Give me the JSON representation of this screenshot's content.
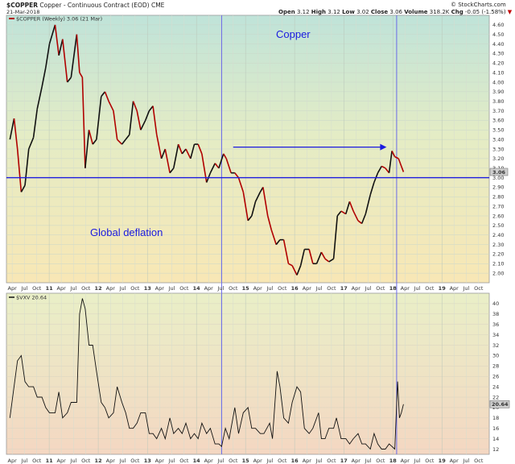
{
  "header": {
    "symbol": "$COPPER",
    "description": "Copper - Continuous Contract (EOD)",
    "exchange": "CME",
    "date": "21-Mar-2018",
    "open_label": "Open",
    "open": "3.12",
    "high_label": "High",
    "high": "3.12",
    "low_label": "Low",
    "low": "3.02",
    "close_label": "Close",
    "close": "3.06",
    "volume_label": "Volume",
    "volume": "318.2K",
    "chg_label": "Chg",
    "chg": "-0.05 (-1.58%)",
    "chg_arrow": "▼",
    "brand": "© StockCharts.com"
  },
  "colors": {
    "price_line": "#b00000",
    "price_up": "#111111",
    "vix_line": "#111111",
    "horizontal_line": "#1a1adf",
    "vertical_lines": "#6a6ae8",
    "arrow": "#1a1adf",
    "annotation_text": "#1a1adf",
    "current_value_box": "#cccccc"
  },
  "chart_data": [
    {
      "type": "line",
      "panel": "price",
      "legend": "$COPPER (Weekly) 3.06 (21 Mar)",
      "current_value_label": "3.06",
      "annotations": [
        "Copper",
        "Global deflation"
      ],
      "ylim": [
        1.9,
        4.7
      ],
      "y_ticks": [
        "2.00",
        "2.10",
        "2.20",
        "2.30",
        "2.40",
        "2.50",
        "2.60",
        "2.70",
        "2.80",
        "2.90",
        "3.00",
        "3.10",
        "3.20",
        "3.30",
        "3.40",
        "3.50",
        "3.60",
        "3.70",
        "3.80",
        "3.90",
        "4.00",
        "4.10",
        "4.20",
        "4.30",
        "4.40",
        "4.50",
        "4.60"
      ],
      "horizontal_line_value": 3.0,
      "arrow_y_value": 3.32,
      "series": [
        {
          "values": [
            [
              "2010-03-15",
              3.4
            ],
            [
              "2010-04-15",
              3.62
            ],
            [
              "2010-05-10",
              3.3
            ],
            [
              "2010-06-07",
              2.85
            ],
            [
              "2010-07-05",
              2.92
            ],
            [
              "2010-08-02",
              3.3
            ],
            [
              "2010-09-06",
              3.42
            ],
            [
              "2010-10-04",
              3.72
            ],
            [
              "2010-11-08",
              3.95
            ],
            [
              "2010-12-06",
              4.15
            ],
            [
              "2011-01-03",
              4.4
            ],
            [
              "2011-02-14",
              4.6
            ],
            [
              "2011-03-14",
              4.28
            ],
            [
              "2011-04-11",
              4.45
            ],
            [
              "2011-05-16",
              4.0
            ],
            [
              "2011-06-13",
              4.05
            ],
            [
              "2011-07-25",
              4.5
            ],
            [
              "2011-08-15",
              4.1
            ],
            [
              "2011-09-05",
              4.05
            ],
            [
              "2011-09-26",
              3.1
            ],
            [
              "2011-10-24",
              3.5
            ],
            [
              "2011-11-21",
              3.35
            ],
            [
              "2011-12-19",
              3.4
            ],
            [
              "2012-01-23",
              3.85
            ],
            [
              "2012-02-20",
              3.9
            ],
            [
              "2012-03-19",
              3.8
            ],
            [
              "2012-04-23",
              3.7
            ],
            [
              "2012-05-21",
              3.4
            ],
            [
              "2012-06-25",
              3.35
            ],
            [
              "2012-07-23",
              3.4
            ],
            [
              "2012-08-20",
              3.45
            ],
            [
              "2012-09-17",
              3.8
            ],
            [
              "2012-10-15",
              3.7
            ],
            [
              "2012-11-12",
              3.5
            ],
            [
              "2012-12-17",
              3.6
            ],
            [
              "2013-01-14",
              3.7
            ],
            [
              "2013-02-11",
              3.75
            ],
            [
              "2013-03-11",
              3.45
            ],
            [
              "2013-04-15",
              3.2
            ],
            [
              "2013-05-13",
              3.3
            ],
            [
              "2013-06-17",
              3.05
            ],
            [
              "2013-07-15",
              3.1
            ],
            [
              "2013-08-19",
              3.35
            ],
            [
              "2013-09-16",
              3.25
            ],
            [
              "2013-10-14",
              3.3
            ],
            [
              "2013-11-18",
              3.2
            ],
            [
              "2013-12-16",
              3.35
            ],
            [
              "2014-01-13",
              3.35
            ],
            [
              "2014-02-10",
              3.25
            ],
            [
              "2014-03-17",
              2.95
            ],
            [
              "2014-04-14",
              3.05
            ],
            [
              "2014-05-19",
              3.15
            ],
            [
              "2014-06-16",
              3.1
            ],
            [
              "2014-07-21",
              3.25
            ],
            [
              "2014-08-11",
              3.2
            ],
            [
              "2014-09-15",
              3.05
            ],
            [
              "2014-10-13",
              3.05
            ],
            [
              "2014-11-10",
              3.0
            ],
            [
              "2014-12-15",
              2.85
            ],
            [
              "2015-01-19",
              2.55
            ],
            [
              "2015-02-16",
              2.6
            ],
            [
              "2015-03-16",
              2.75
            ],
            [
              "2015-04-20",
              2.85
            ],
            [
              "2015-05-11",
              2.9
            ],
            [
              "2015-06-15",
              2.6
            ],
            [
              "2015-07-13",
              2.45
            ],
            [
              "2015-08-17",
              2.3
            ],
            [
              "2015-09-14",
              2.35
            ],
            [
              "2015-10-12",
              2.35
            ],
            [
              "2015-11-16",
              2.1
            ],
            [
              "2015-12-14",
              2.08
            ],
            [
              "2016-01-18",
              1.98
            ],
            [
              "2016-02-15",
              2.08
            ],
            [
              "2016-03-14",
              2.25
            ],
            [
              "2016-04-18",
              2.25
            ],
            [
              "2016-05-16",
              2.1
            ],
            [
              "2016-06-13",
              2.1
            ],
            [
              "2016-07-18",
              2.22
            ],
            [
              "2016-08-15",
              2.15
            ],
            [
              "2016-09-12",
              2.12
            ],
            [
              "2016-10-17",
              2.15
            ],
            [
              "2016-11-14",
              2.6
            ],
            [
              "2016-12-12",
              2.65
            ],
            [
              "2017-01-16",
              2.62
            ],
            [
              "2017-02-13",
              2.75
            ],
            [
              "2017-03-13",
              2.65
            ],
            [
              "2017-04-17",
              2.55
            ],
            [
              "2017-05-15",
              2.52
            ],
            [
              "2017-06-12",
              2.62
            ],
            [
              "2017-07-17",
              2.82
            ],
            [
              "2017-08-14",
              2.95
            ],
            [
              "2017-09-11",
              3.05
            ],
            [
              "2017-10-09",
              3.12
            ],
            [
              "2017-11-06",
              3.1
            ],
            [
              "2017-12-04",
              3.05
            ],
            [
              "2017-12-25",
              3.28
            ],
            [
              "2018-01-15",
              3.22
            ],
            [
              "2018-02-12",
              3.2
            ],
            [
              "2018-03-05",
              3.12
            ],
            [
              "2018-03-21",
              3.06
            ]
          ]
        }
      ]
    },
    {
      "type": "line",
      "panel": "vix",
      "legend": "$VXV 20.64",
      "current_value_label": "20.64",
      "ylim": [
        11,
        42
      ],
      "y_ticks": [
        "12",
        "14",
        "16",
        "18",
        "20",
        "22",
        "24",
        "26",
        "28",
        "30",
        "32",
        "34",
        "36",
        "38",
        "40"
      ],
      "series": [
        {
          "values": [
            [
              "2010-03-15",
              18
            ],
            [
              "2010-05-10",
              29
            ],
            [
              "2010-06-07",
              30
            ],
            [
              "2010-07-05",
              25
            ],
            [
              "2010-08-02",
              24
            ],
            [
              "2010-09-06",
              24
            ],
            [
              "2010-10-04",
              22
            ],
            [
              "2010-11-08",
              22
            ],
            [
              "2010-12-06",
              20
            ],
            [
              "2011-01-03",
              19
            ],
            [
              "2011-02-14",
              19
            ],
            [
              "2011-03-14",
              23
            ],
            [
              "2011-04-11",
              18
            ],
            [
              "2011-05-16",
              19
            ],
            [
              "2011-06-13",
              21
            ],
            [
              "2011-07-25",
              21
            ],
            [
              "2011-08-15",
              38
            ],
            [
              "2011-09-05",
              41
            ],
            [
              "2011-09-26",
              39
            ],
            [
              "2011-10-24",
              32
            ],
            [
              "2011-11-21",
              32
            ],
            [
              "2011-12-19",
              27
            ],
            [
              "2012-01-23",
              21
            ],
            [
              "2012-02-20",
              20
            ],
            [
              "2012-03-19",
              18
            ],
            [
              "2012-04-23",
              19
            ],
            [
              "2012-05-21",
              24
            ],
            [
              "2012-06-25",
              21
            ],
            [
              "2012-07-23",
              19
            ],
            [
              "2012-08-20",
              16
            ],
            [
              "2012-09-17",
              16
            ],
            [
              "2012-10-15",
              17
            ],
            [
              "2012-11-12",
              19
            ],
            [
              "2012-12-17",
              19
            ],
            [
              "2013-01-14",
              15
            ],
            [
              "2013-02-11",
              15
            ],
            [
              "2013-03-11",
              14
            ],
            [
              "2013-04-15",
              16
            ],
            [
              "2013-05-13",
              14
            ],
            [
              "2013-06-17",
              18
            ],
            [
              "2013-07-15",
              15
            ],
            [
              "2013-08-19",
              16
            ],
            [
              "2013-09-16",
              15
            ],
            [
              "2013-10-14",
              17
            ],
            [
              "2013-11-18",
              14
            ],
            [
              "2013-12-16",
              15
            ],
            [
              "2014-01-13",
              14
            ],
            [
              "2014-02-10",
              17
            ],
            [
              "2014-03-17",
              15
            ],
            [
              "2014-04-14",
              16
            ],
            [
              "2014-05-19",
              13
            ],
            [
              "2014-06-16",
              13
            ],
            [
              "2014-07-07",
              12.5
            ],
            [
              "2014-08-04",
              16
            ],
            [
              "2014-09-01",
              14
            ],
            [
              "2014-10-13",
              20
            ],
            [
              "2014-11-10",
              15
            ],
            [
              "2014-12-15",
              19
            ],
            [
              "2015-01-19",
              20
            ],
            [
              "2015-02-16",
              16
            ],
            [
              "2015-03-16",
              16
            ],
            [
              "2015-04-20",
              15
            ],
            [
              "2015-05-18",
              15
            ],
            [
              "2015-06-29",
              17
            ],
            [
              "2015-07-20",
              14
            ],
            [
              "2015-08-24",
              27
            ],
            [
              "2015-09-14",
              24
            ],
            [
              "2015-10-12",
              18
            ],
            [
              "2015-11-16",
              17
            ],
            [
              "2015-12-14",
              21
            ],
            [
              "2016-01-18",
              24
            ],
            [
              "2016-02-15",
              23
            ],
            [
              "2016-03-14",
              16
            ],
            [
              "2016-04-18",
              15
            ],
            [
              "2016-05-16",
              16
            ],
            [
              "2016-06-27",
              19
            ],
            [
              "2016-07-18",
              14
            ],
            [
              "2016-08-15",
              14
            ],
            [
              "2016-09-12",
              16
            ],
            [
              "2016-10-17",
              16
            ],
            [
              "2016-11-07",
              18
            ],
            [
              "2016-12-12",
              14
            ],
            [
              "2017-01-16",
              14
            ],
            [
              "2017-02-13",
              13
            ],
            [
              "2017-03-13",
              14
            ],
            [
              "2017-04-17",
              15
            ],
            [
              "2017-05-15",
              13
            ],
            [
              "2017-06-12",
              13
            ],
            [
              "2017-07-17",
              12
            ],
            [
              "2017-08-14",
              15
            ],
            [
              "2017-09-11",
              13
            ],
            [
              "2017-10-09",
              12
            ],
            [
              "2017-11-06",
              12
            ],
            [
              "2017-12-04",
              13
            ],
            [
              "2018-01-15",
              12
            ],
            [
              "2018-02-05",
              25
            ],
            [
              "2018-02-19",
              18
            ],
            [
              "2018-03-05",
              19
            ],
            [
              "2018-03-21",
              20.64
            ]
          ]
        }
      ]
    }
  ],
  "x_ticks": [
    "Apr",
    "Jul",
    "Oct",
    "11",
    "Apr",
    "Jul",
    "Oct",
    "12",
    "Apr",
    "Jul",
    "Oct",
    "13",
    "Apr",
    "Jul",
    "Oct",
    "14",
    "Apr",
    "Jul",
    "Oct",
    "15",
    "Apr",
    "Jul",
    "Oct",
    "16",
    "Apr",
    "Jul",
    "Oct",
    "17",
    "Apr",
    "Jul",
    "Oct",
    "18",
    "Apr",
    "Jul",
    "Oct",
    "19",
    "Apr",
    "Jul",
    "Oct"
  ]
}
